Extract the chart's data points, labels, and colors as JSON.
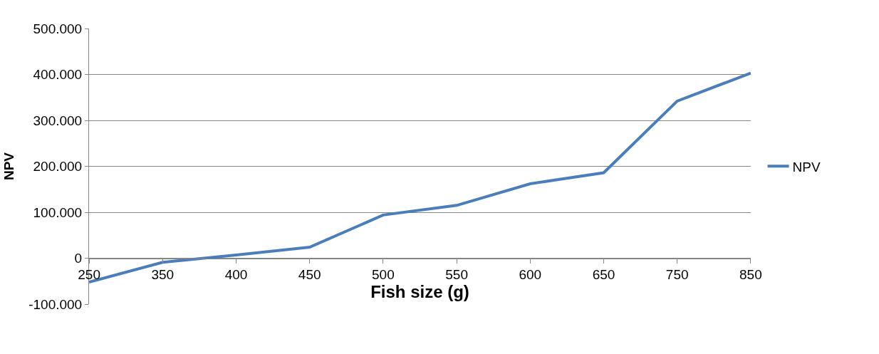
{
  "chart_data": {
    "type": "line",
    "xlabel": "Fish size (g)",
    "ylabel": "NPV",
    "categories": [
      "250",
      "350",
      "400",
      "450",
      "500",
      "550",
      "600",
      "650",
      "750",
      "850"
    ],
    "series": [
      {
        "name": "NPV",
        "color": "#4a7ebb",
        "values": [
          -52000,
          -9000,
          7000,
          24000,
          94000,
          115000,
          162000,
          186000,
          342000,
          403000
        ]
      }
    ],
    "ylim": [
      -100000,
      500000
    ],
    "yticks": [
      {
        "value": -100000,
        "label": "-100.000"
      },
      {
        "value": 0,
        "label": "0"
      },
      {
        "value": 100000,
        "label": "100.000"
      },
      {
        "value": 200000,
        "label": "200.000"
      },
      {
        "value": 300000,
        "label": "300.000"
      },
      {
        "value": 400000,
        "label": "400.000"
      },
      {
        "value": 500000,
        "label": "500.000"
      }
    ],
    "grid": "y",
    "legend": "right",
    "marker": "none",
    "line_style": "solid"
  }
}
